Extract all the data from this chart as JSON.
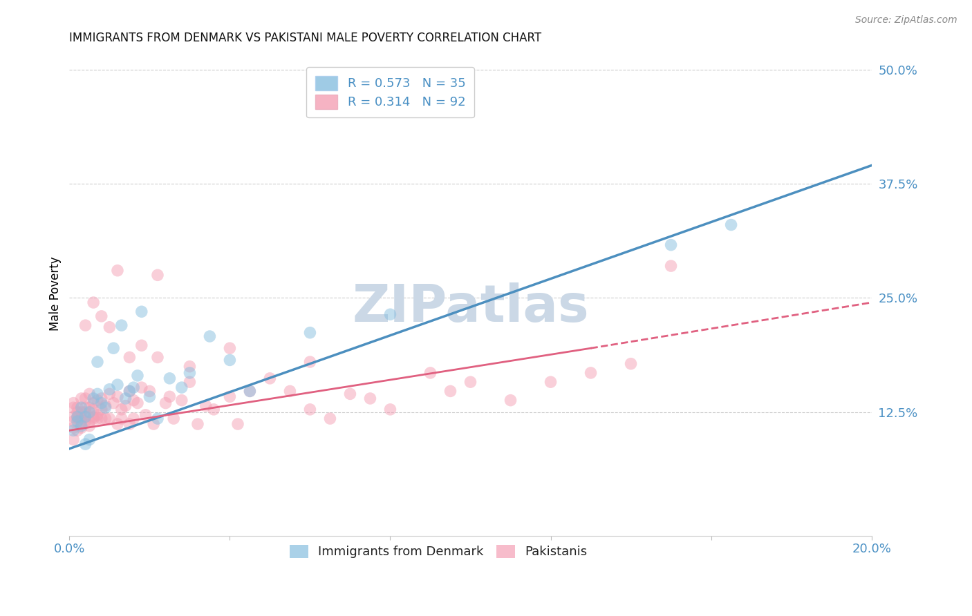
{
  "title": "IMMIGRANTS FROM DENMARK VS PAKISTANI MALE POVERTY CORRELATION CHART",
  "source": "Source: ZipAtlas.com",
  "ylabel": "Male Poverty",
  "xlim": [
    0.0,
    0.2
  ],
  "ylim": [
    -0.01,
    0.52
  ],
  "xticks": [
    0.0,
    0.04,
    0.08,
    0.12,
    0.16,
    0.2
  ],
  "xtick_labels": [
    "0.0%",
    "",
    "",
    "",
    "",
    "20.0%"
  ],
  "ytick_labels_right": [
    "12.5%",
    "25.0%",
    "37.5%",
    "50.0%"
  ],
  "ytick_vals_right": [
    0.125,
    0.25,
    0.375,
    0.5
  ],
  "legend_r1": "R = 0.573",
  "legend_n1": "N = 35",
  "legend_r2": "R = 0.314",
  "legend_n2": "N = 92",
  "color_blue": "#87BEDF",
  "color_pink": "#F4A0B5",
  "line_blue": "#4C8FBF",
  "line_pink": "#E06080",
  "watermark": "ZIPatlas",
  "watermark_color": "#CBD8E6",
  "denmark_line_x0": 0.0,
  "denmark_line_y0": 0.085,
  "denmark_line_x1": 0.2,
  "denmark_line_y1": 0.395,
  "pakistan_line_solid_x0": 0.0,
  "pakistan_line_solid_y0": 0.105,
  "pakistan_line_solid_x1": 0.13,
  "pakistan_line_solid_y1": 0.195,
  "pakistan_line_dash_x0": 0.13,
  "pakistan_line_dash_y0": 0.195,
  "pakistan_line_dash_x1": 0.2,
  "pakistan_line_dash_y1": 0.245,
  "denmark_pts_x": [
    0.001,
    0.002,
    0.002,
    0.003,
    0.003,
    0.004,
    0.004,
    0.005,
    0.005,
    0.006,
    0.007,
    0.007,
    0.008,
    0.009,
    0.01,
    0.011,
    0.012,
    0.013,
    0.014,
    0.015,
    0.016,
    0.017,
    0.018,
    0.02,
    0.022,
    0.025,
    0.028,
    0.03,
    0.035,
    0.04,
    0.045,
    0.06,
    0.08,
    0.15,
    0.165
  ],
  "denmark_pts_y": [
    0.105,
    0.12,
    0.115,
    0.13,
    0.11,
    0.12,
    0.09,
    0.125,
    0.095,
    0.14,
    0.18,
    0.145,
    0.135,
    0.13,
    0.15,
    0.195,
    0.155,
    0.22,
    0.14,
    0.148,
    0.152,
    0.165,
    0.235,
    0.142,
    0.118,
    0.162,
    0.152,
    0.168,
    0.208,
    0.182,
    0.148,
    0.212,
    0.232,
    0.308,
    0.33
  ],
  "pakistan_pts_x": [
    0.001,
    0.001,
    0.001,
    0.001,
    0.001,
    0.001,
    0.002,
    0.002,
    0.002,
    0.002,
    0.002,
    0.003,
    0.003,
    0.003,
    0.003,
    0.003,
    0.004,
    0.004,
    0.004,
    0.004,
    0.004,
    0.005,
    0.005,
    0.005,
    0.005,
    0.006,
    0.006,
    0.006,
    0.006,
    0.007,
    0.007,
    0.007,
    0.008,
    0.008,
    0.008,
    0.009,
    0.009,
    0.01,
    0.01,
    0.011,
    0.012,
    0.012,
    0.013,
    0.013,
    0.014,
    0.015,
    0.015,
    0.016,
    0.016,
    0.017,
    0.018,
    0.019,
    0.02,
    0.021,
    0.022,
    0.024,
    0.025,
    0.026,
    0.028,
    0.03,
    0.032,
    0.034,
    0.036,
    0.04,
    0.042,
    0.045,
    0.05,
    0.055,
    0.06,
    0.065,
    0.07,
    0.075,
    0.08,
    0.09,
    0.095,
    0.1,
    0.11,
    0.12,
    0.13,
    0.14,
    0.15,
    0.004,
    0.006,
    0.008,
    0.01,
    0.012,
    0.015,
    0.018,
    0.022,
    0.03,
    0.04,
    0.06
  ],
  "pakistan_pts_y": [
    0.115,
    0.12,
    0.13,
    0.095,
    0.108,
    0.135,
    0.12,
    0.13,
    0.118,
    0.105,
    0.125,
    0.125,
    0.14,
    0.108,
    0.115,
    0.118,
    0.13,
    0.12,
    0.125,
    0.115,
    0.14,
    0.145,
    0.11,
    0.13,
    0.115,
    0.12,
    0.135,
    0.118,
    0.128,
    0.138,
    0.122,
    0.118,
    0.14,
    0.128,
    0.118,
    0.132,
    0.118,
    0.145,
    0.118,
    0.135,
    0.112,
    0.142,
    0.128,
    0.118,
    0.132,
    0.148,
    0.112,
    0.138,
    0.118,
    0.135,
    0.152,
    0.122,
    0.148,
    0.112,
    0.185,
    0.135,
    0.142,
    0.118,
    0.138,
    0.158,
    0.112,
    0.132,
    0.128,
    0.142,
    0.112,
    0.148,
    0.162,
    0.148,
    0.128,
    0.118,
    0.145,
    0.14,
    0.128,
    0.168,
    0.148,
    0.158,
    0.138,
    0.158,
    0.168,
    0.178,
    0.285,
    0.22,
    0.245,
    0.23,
    0.218,
    0.28,
    0.185,
    0.198,
    0.275,
    0.175,
    0.195,
    0.18
  ]
}
